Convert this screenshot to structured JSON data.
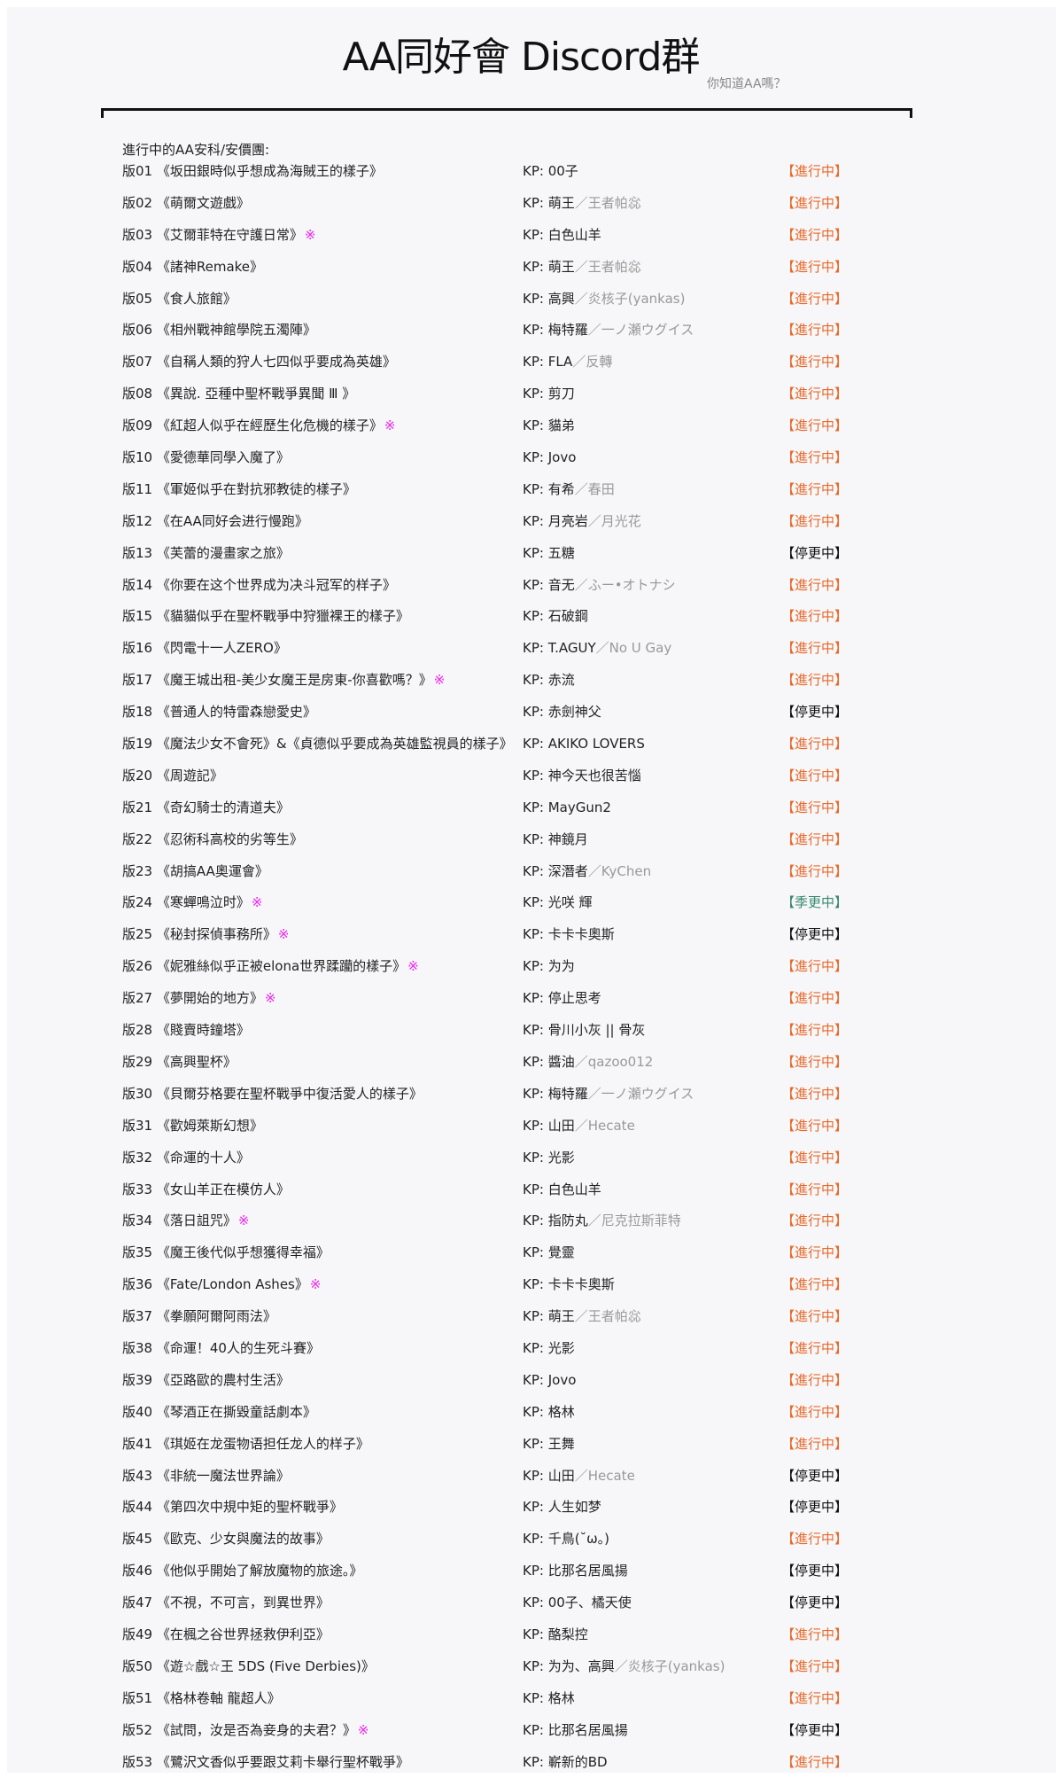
{
  "header": {
    "title": "AA同好會 Discord群",
    "subtitle": "你知道AA嗎？"
  },
  "section_heading": "進行中的AA安科/安價團:",
  "colors": {
    "active": "#e8692a",
    "paused": "#111111",
    "seasonal": "#3a8a6e",
    "mark": "#ee22ee"
  },
  "kp_prefix": "KP: ",
  "mark_symbol": "※",
  "rows": [
    {
      "num": "版01",
      "title": "《坂田銀時似乎想成為海賊王的樣子》",
      "mark": false,
      "kp": "00子",
      "kp_alt": "",
      "status": "【進行中】",
      "type": "active"
    },
    {
      "num": "版02",
      "title": "《萌爾文遊戲》",
      "mark": false,
      "kp": "萌王",
      "kp_alt": "／王者帕惢",
      "status": "【進行中】",
      "type": "active"
    },
    {
      "num": "版03",
      "title": "《艾爾菲特在守護日常》",
      "mark": true,
      "kp": "白色山羊",
      "kp_alt": "",
      "status": "【進行中】",
      "type": "active"
    },
    {
      "num": "版04",
      "title": "《諸神Remake》",
      "mark": false,
      "kp": "萌王",
      "kp_alt": "／王者帕惢",
      "status": "【進行中】",
      "type": "active"
    },
    {
      "num": "版05",
      "title": "《食人旅館》",
      "mark": false,
      "kp": "高興",
      "kp_alt": "／炎核子(yankas)",
      "status": "【進行中】",
      "type": "active"
    },
    {
      "num": "版06",
      "title": "《相州戰神館學院五濁陣》",
      "mark": false,
      "kp": "梅特羅",
      "kp_alt": "／一ノ瀬ウグイス",
      "status": "【進行中】",
      "type": "active"
    },
    {
      "num": "版07",
      "title": "《自稱人類的狩人七四似乎要成為英雄》",
      "mark": false,
      "kp": "FLA",
      "kp_alt": "／反轉",
      "status": "【進行中】",
      "type": "active"
    },
    {
      "num": "版08",
      "title": "《異說. 亞種中聖杯戰爭異聞 Ⅲ 》",
      "mark": false,
      "kp": "剪刀",
      "kp_alt": "",
      "status": "【進行中】",
      "type": "active"
    },
    {
      "num": "版09",
      "title": "《紅超人似乎在經歷生化危機的樣子》",
      "mark": true,
      "kp": "貓弟",
      "kp_alt": "",
      "status": "【進行中】",
      "type": "active"
    },
    {
      "num": "版10",
      "title": "《愛德華同學入魔了》",
      "mark": false,
      "kp": "Jovo",
      "kp_alt": "",
      "status": "【進行中】",
      "type": "active"
    },
    {
      "num": "版11",
      "title": "《軍姬似乎在對抗邪教徒的樣子》",
      "mark": false,
      "kp": "有希",
      "kp_alt": "／春田",
      "status": "【進行中】",
      "type": "active"
    },
    {
      "num": "版12",
      "title": "《在AA同好会进行慢跑》",
      "mark": false,
      "kp": "月亮岩",
      "kp_alt": "／月光花",
      "status": "【進行中】",
      "type": "active"
    },
    {
      "num": "版13",
      "title": "《芙蕾的漫畫家之旅》",
      "mark": false,
      "kp": "五糖",
      "kp_alt": "",
      "status": "【停更中】",
      "type": "paused"
    },
    {
      "num": "版14",
      "title": "《你要在这个世界成为决斗冠军的样子》",
      "mark": false,
      "kp": "音无",
      "kp_alt": "／ふー•オトナシ",
      "status": "【進行中】",
      "type": "active"
    },
    {
      "num": "版15",
      "title": "《貓貓似乎在聖杯戰爭中狩獵裸王的樣子》",
      "mark": false,
      "kp": "石破鋼",
      "kp_alt": "",
      "status": "【進行中】",
      "type": "active"
    },
    {
      "num": "版16",
      "title": "《閃電十一人ZERO》",
      "mark": false,
      "kp": "T.AGUY",
      "kp_alt": "／No U Gay",
      "status": "【進行中】",
      "type": "active"
    },
    {
      "num": "版17",
      "title": "《魔王城出租-美少女魔王是房東-你喜歡嗎？》",
      "mark": true,
      "kp": "赤流",
      "kp_alt": "",
      "status": "【進行中】",
      "type": "active"
    },
    {
      "num": "版18",
      "title": "《普通人的特雷森戀愛史》",
      "mark": false,
      "kp": "赤劍神父",
      "kp_alt": "",
      "status": "【停更中】",
      "type": "paused"
    },
    {
      "num": "版19",
      "title": "《魔法少女不會死》&《貞德似乎要成為英雄監視員的樣子》",
      "mark": false,
      "kp": "AKIKO LOVERS",
      "kp_alt": "",
      "status": "【進行中】",
      "type": "active"
    },
    {
      "num": "版20",
      "title": "《周遊記》",
      "mark": false,
      "kp": "神今天也很苦惱",
      "kp_alt": "",
      "status": "【進行中】",
      "type": "active"
    },
    {
      "num": "版21",
      "title": "《奇幻騎士的清道夫》",
      "mark": false,
      "kp": "MayGun2",
      "kp_alt": "",
      "status": "【進行中】",
      "type": "active"
    },
    {
      "num": "版22",
      "title": "《忍術科高校的劣等生》",
      "mark": false,
      "kp": "神鏡月",
      "kp_alt": "",
      "status": "【進行中】",
      "type": "active"
    },
    {
      "num": "版23",
      "title": "《胡搞AA奧運會》",
      "mark": false,
      "kp": "深潛者",
      "kp_alt": "／KyChen",
      "status": "【進行中】",
      "type": "active"
    },
    {
      "num": "版24",
      "title": "《寒蟬鳴泣时》",
      "mark": true,
      "kp": "光咲 輝",
      "kp_alt": "",
      "status": "【季更中】",
      "type": "seasonal"
    },
    {
      "num": "版25",
      "title": "《秘封探偵事務所》",
      "mark": true,
      "kp": "卡卡卡奧斯",
      "kp_alt": "",
      "status": "【停更中】",
      "type": "paused"
    },
    {
      "num": "版26",
      "title": "《妮雅絲似乎正被elona世界蹂躪的樣子》",
      "mark": true,
      "kp": "为为",
      "kp_alt": "",
      "status": "【進行中】",
      "type": "active"
    },
    {
      "num": "版27",
      "title": "《夢開始的地方》",
      "mark": true,
      "kp": "停止思考",
      "kp_alt": "",
      "status": "【進行中】",
      "type": "active"
    },
    {
      "num": "版28",
      "title": "《賤賣時鐘塔》",
      "mark": false,
      "kp": "骨川小灰 || 骨灰",
      "kp_alt": "",
      "status": "【進行中】",
      "type": "active"
    },
    {
      "num": "版29",
      "title": "《高興聖杯》",
      "mark": false,
      "kp": "醬油",
      "kp_alt": "／qazoo012",
      "status": "【進行中】",
      "type": "active"
    },
    {
      "num": "版30",
      "title": "《貝爾芬格要在聖杯戰爭中復活愛人的樣子》",
      "mark": false,
      "kp": "梅特羅",
      "kp_alt": "／一ノ瀬ウグイス",
      "status": "【進行中】",
      "type": "active"
    },
    {
      "num": "版31",
      "title": "《歡姆萊斯幻想》",
      "mark": false,
      "kp": "山田",
      "kp_alt": "／Hecate",
      "status": "【進行中】",
      "type": "active"
    },
    {
      "num": "版32",
      "title": "《命運的十人》",
      "mark": false,
      "kp": "光影",
      "kp_alt": "",
      "status": "【進行中】",
      "type": "active"
    },
    {
      "num": "版33",
      "title": "《女山羊正在模仿人》",
      "mark": false,
      "kp": "白色山羊",
      "kp_alt": "",
      "status": "【進行中】",
      "type": "active"
    },
    {
      "num": "版34",
      "title": "《落日詛咒》",
      "mark": true,
      "kp": "指防丸",
      "kp_alt": "／尼克拉斯菲特",
      "status": "【進行中】",
      "type": "active"
    },
    {
      "num": "版35",
      "title": "《魔王後代似乎想獲得幸福》",
      "mark": false,
      "kp": "覺靈",
      "kp_alt": "",
      "status": "【進行中】",
      "type": "active"
    },
    {
      "num": "版36",
      "title": "《Fate/London Ashes》",
      "mark": true,
      "kp": "卡卡卡奧斯",
      "kp_alt": "",
      "status": "【進行中】",
      "type": "active"
    },
    {
      "num": "版37",
      "title": "《拳願阿爾阿雨法》",
      "mark": false,
      "kp": "萌王",
      "kp_alt": "／王者帕惢",
      "status": "【進行中】",
      "type": "active"
    },
    {
      "num": "版38",
      "title": "《命運！40人的生死斗賽》",
      "mark": false,
      "kp": "光影",
      "kp_alt": "",
      "status": "【進行中】",
      "type": "active"
    },
    {
      "num": "版39",
      "title": "《亞路歐的農村生活》",
      "mark": false,
      "kp": "Jovo",
      "kp_alt": "",
      "status": "【進行中】",
      "type": "active"
    },
    {
      "num": "版40",
      "title": "《琴酒正在撕毀童話劇本》",
      "mark": false,
      "kp": "格林",
      "kp_alt": "",
      "status": "【進行中】",
      "type": "active"
    },
    {
      "num": "版41",
      "title": "《琪姬在龙蛋物语担任龙人的样子》",
      "mark": false,
      "kp": "王舞",
      "kp_alt": "",
      "status": "【進行中】",
      "type": "active"
    },
    {
      "num": "版43",
      "title": "《非統一魔法世界論》",
      "mark": false,
      "kp": "山田",
      "kp_alt": "／Hecate",
      "status": "【停更中】",
      "type": "paused"
    },
    {
      "num": "版44",
      "title": "《第四次中規中矩的聖杯戰爭》",
      "mark": false,
      "kp": "人生如梦",
      "kp_alt": "",
      "status": "【停更中】",
      "type": "paused"
    },
    {
      "num": "版45",
      "title": "《歐克、少女與魔法的故事》",
      "mark": false,
      "kp": "千鳥(˘ω。)",
      "kp_alt": "",
      "status": "【進行中】",
      "type": "active"
    },
    {
      "num": "版46",
      "title": "《他似乎開始了解放魔物的旅途。》",
      "mark": false,
      "kp": "比那名居風揚",
      "kp_alt": "",
      "status": "【停更中】",
      "type": "paused"
    },
    {
      "num": "版47",
      "title": "《不視，不可言，到異世界》",
      "mark": false,
      "kp": "00子、橘天使",
      "kp_alt": "",
      "status": "【停更中】",
      "type": "paused"
    },
    {
      "num": "版49",
      "title": "《在楓之谷世界拯救伊利亞》",
      "mark": false,
      "kp": "酪梨控",
      "kp_alt": "",
      "status": "【進行中】",
      "type": "active"
    },
    {
      "num": "版50",
      "title": "《遊☆戲☆王 5DS (Five Derbies)》",
      "mark": false,
      "kp": "为为、高興",
      "kp_alt": "／炎核子(yankas)",
      "status": "【進行中】",
      "type": "active"
    },
    {
      "num": "版51",
      "title": "《格林卷軸 龍超人》",
      "mark": false,
      "kp": "格林",
      "kp_alt": "",
      "status": "【進行中】",
      "type": "active"
    },
    {
      "num": "版52",
      "title": "《試問，汝是否為妾身的夫君？》",
      "mark": true,
      "kp": "比那名居風揚",
      "kp_alt": "",
      "status": "【停更中】",
      "type": "paused"
    },
    {
      "num": "版53",
      "title": "《鷺沢文香似乎要跟艾莉卡舉行聖杯戰爭》",
      "mark": false,
      "kp": "嶄新的BD",
      "kp_alt": "",
      "status": "【進行中】",
      "type": "active"
    }
  ]
}
